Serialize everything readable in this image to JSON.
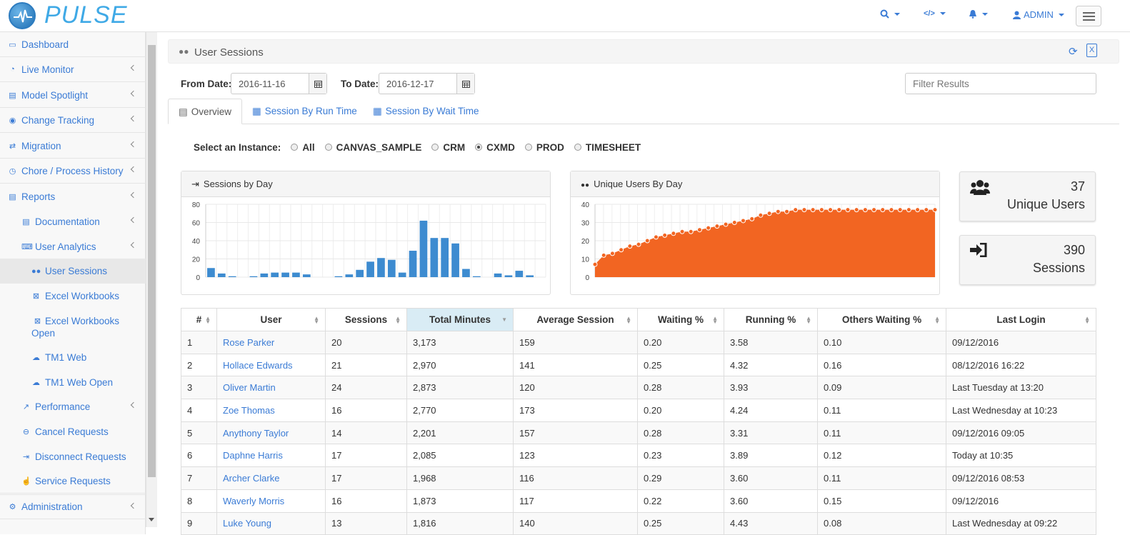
{
  "app": {
    "brand": "PULSE"
  },
  "topnav": {
    "admin_label": "ADMIN"
  },
  "sidebar": {
    "items": [
      {
        "label": "Dashboard",
        "icon": "desktop-icon"
      },
      {
        "label": "Live Monitor",
        "icon": "dashboard-icon"
      },
      {
        "label": "Model Spotlight",
        "icon": "list-alt-icon"
      },
      {
        "label": "Change Tracking",
        "icon": "eye-icon"
      },
      {
        "label": "Migration",
        "icon": "exchange-icon"
      },
      {
        "label": "Chore / Process History",
        "icon": "clock-icon"
      },
      {
        "label": "Reports",
        "icon": "list-alt-icon"
      },
      {
        "label": "Documentation",
        "icon": "list-alt-icon"
      },
      {
        "label": "User Analytics",
        "icon": "keyboard-icon"
      },
      {
        "label": "User Sessions",
        "icon": "users-icon"
      },
      {
        "label": "Excel Workbooks",
        "icon": "excel-icon"
      },
      {
        "label": "Excel Workbooks Open",
        "icon": "excel-icon"
      },
      {
        "label": "TM1 Web",
        "icon": "cloud-icon"
      },
      {
        "label": "TM1 Web Open",
        "icon": "cloud-icon"
      },
      {
        "label": "Performance",
        "icon": "line-chart-icon"
      },
      {
        "label": "Cancel Requests",
        "icon": "minus-circle-icon"
      },
      {
        "label": "Disconnect Requests",
        "icon": "sign-out-icon"
      },
      {
        "label": "Service Requests",
        "icon": "hand-icon"
      },
      {
        "label": "Administration",
        "icon": "cogs-icon"
      }
    ]
  },
  "page": {
    "title": "User Sessions",
    "from_label": "From Date:",
    "from_value": "2016-11-16",
    "to_label": "To Date:",
    "to_value": "2016-12-17",
    "filter_placeholder": "Filter Results",
    "tabs": [
      "Overview",
      "Session By Run Time",
      "Session By Wait Time"
    ],
    "instance_label": "Select an Instance:",
    "instances": [
      "All",
      "CANVAS_SAMPLE",
      "CRM",
      "CXMD",
      "PROD",
      "TIMESHEET"
    ],
    "selected_instance": "CXMD"
  },
  "stats": {
    "unique_users_value": "37",
    "unique_users_label": "Unique Users",
    "sessions_value": "390",
    "sessions_label": "Sessions"
  },
  "chart_data": [
    {
      "type": "bar",
      "title": "Sessions by Day",
      "color": "#3d8bd0",
      "ylim": [
        0,
        80
      ],
      "yticks": [
        0,
        20,
        40,
        60,
        80
      ],
      "values": [
        10,
        4,
        1,
        0,
        1,
        4,
        5,
        5,
        5,
        3,
        0,
        0,
        1,
        3,
        8,
        17,
        21,
        19,
        5,
        29,
        62,
        43,
        43,
        37,
        9,
        1,
        0,
        4,
        2,
        7,
        2,
        0
      ]
    },
    {
      "type": "area",
      "title": "Unique Users By Day",
      "color": "#f26522",
      "ylim": [
        0,
        40
      ],
      "yticks": [
        0,
        10,
        20,
        30,
        40
      ],
      "values": [
        7,
        12,
        13,
        15,
        17,
        18,
        20,
        22,
        23,
        24,
        25,
        25,
        26,
        27,
        28,
        29,
        30,
        31,
        32,
        34,
        35,
        36,
        36,
        37,
        37,
        37,
        37,
        37,
        37,
        37,
        37,
        37,
        37,
        37,
        37,
        37,
        37,
        37,
        37,
        37
      ]
    }
  ],
  "table": {
    "headers": [
      "#",
      "User",
      "Sessions",
      "Total Minutes",
      "Average Session",
      "Waiting %",
      "Running %",
      "Others Waiting %",
      "Last Login"
    ],
    "rows": [
      [
        "1",
        "Rose Parker",
        "20",
        "3,173",
        "159",
        "0.20",
        "3.58",
        "0.10",
        "09/12/2016"
      ],
      [
        "2",
        "Hollace Edwards",
        "21",
        "2,970",
        "141",
        "0.25",
        "4.32",
        "0.16",
        "08/12/2016 16:22"
      ],
      [
        "3",
        "Oliver Martin",
        "24",
        "2,873",
        "120",
        "0.28",
        "3.93",
        "0.09",
        "Last Tuesday at 13:20"
      ],
      [
        "4",
        "Zoe Thomas",
        "16",
        "2,770",
        "173",
        "0.20",
        "4.24",
        "0.11",
        "Last Wednesday at 10:23"
      ],
      [
        "5",
        "Anythony Taylor",
        "14",
        "2,201",
        "157",
        "0.28",
        "3.31",
        "0.11",
        "09/12/2016 09:05"
      ],
      [
        "6",
        "Daphne Harris",
        "17",
        "2,085",
        "123",
        "0.23",
        "3.89",
        "0.12",
        "Today at 10:35"
      ],
      [
        "7",
        "Archer Clarke",
        "17",
        "1,968",
        "116",
        "0.29",
        "3.60",
        "0.11",
        "09/12/2016 08:53"
      ],
      [
        "8",
        "Waverly Morris",
        "16",
        "1,873",
        "117",
        "0.22",
        "3.60",
        "0.15",
        "09/12/2016"
      ],
      [
        "9",
        "Luke Young",
        "13",
        "1,816",
        "140",
        "0.25",
        "4.43",
        "0.08",
        "Last Wednesday at 09:22"
      ]
    ]
  }
}
